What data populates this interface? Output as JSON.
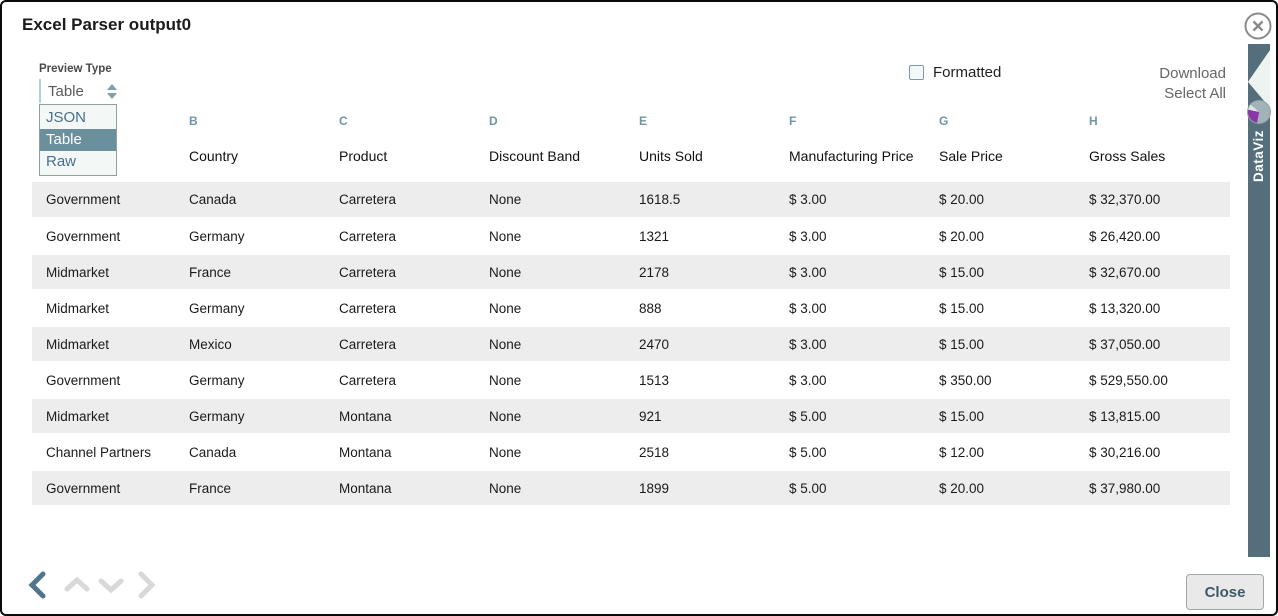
{
  "dialog": {
    "title": "Excel Parser output0",
    "close_button_label": "Close"
  },
  "controls": {
    "preview_type_label": "Preview Type",
    "preview_type_value": "Table",
    "preview_type_options": [
      "JSON",
      "Table",
      "Raw"
    ],
    "preview_type_selected": "Table",
    "formatted_label": "Formatted",
    "formatted_checked": false,
    "download_label": "Download",
    "select_all_label": "Select All"
  },
  "side_tab": {
    "label": "DataViz",
    "icon": "pie-chart-icon"
  },
  "table": {
    "column_letters": [
      "",
      "B",
      "C",
      "D",
      "E",
      "F",
      "G",
      "H"
    ],
    "column_names": [
      "",
      "Country",
      "Product",
      "Discount Band",
      "Units Sold",
      "Manufacturing Price",
      "Sale Price",
      "Gross Sales"
    ],
    "rows": [
      [
        "Government",
        "Canada",
        "Carretera",
        "None",
        "1618.5",
        "$ 3.00",
        "$ 20.00",
        "$ 32,370.00"
      ],
      [
        "Government",
        "Germany",
        "Carretera",
        "None",
        "1321",
        "$ 3.00",
        "$ 20.00",
        "$ 26,420.00"
      ],
      [
        "Midmarket",
        "France",
        "Carretera",
        "None",
        "2178",
        "$ 3.00",
        "$ 15.00",
        "$ 32,670.00"
      ],
      [
        "Midmarket",
        "Germany",
        "Carretera",
        "None",
        "888",
        "$ 3.00",
        "$ 15.00",
        "$ 13,320.00"
      ],
      [
        "Midmarket",
        "Mexico",
        "Carretera",
        "None",
        "2470",
        "$ 3.00",
        "$ 15.00",
        "$ 37,050.00"
      ],
      [
        "Government",
        "Germany",
        "Carretera",
        "None",
        "1513",
        "$ 3.00",
        "$ 350.00",
        "$ 529,550.00"
      ],
      [
        "Midmarket",
        "Germany",
        "Montana",
        "None",
        "921",
        "$ 5.00",
        "$ 15.00",
        "$ 13,815.00"
      ],
      [
        "Channel Partners",
        "Canada",
        "Montana",
        "None",
        "2518",
        "$ 5.00",
        "$ 12.00",
        "$ 30,216.00"
      ],
      [
        "Government",
        "France",
        "Montana",
        "None",
        "1899",
        "$ 5.00",
        "$ 20.00",
        "$ 37,980.00"
      ]
    ]
  },
  "pager": {
    "icons": [
      "chevron-left-icon",
      "chevron-up-icon",
      "chevron-down-icon",
      "chevron-right-icon"
    ],
    "active": "chevron-left-icon"
  },
  "colors": {
    "accent_slate": "#546f7b",
    "option_highlight": "#6a8f9d",
    "column_letter": "#6e96a6",
    "row_stripe": "#ededed",
    "active_chevron": "#51758a",
    "inactive_chevron": "#d8d8d8",
    "pie_purple": "#8b35a9"
  }
}
